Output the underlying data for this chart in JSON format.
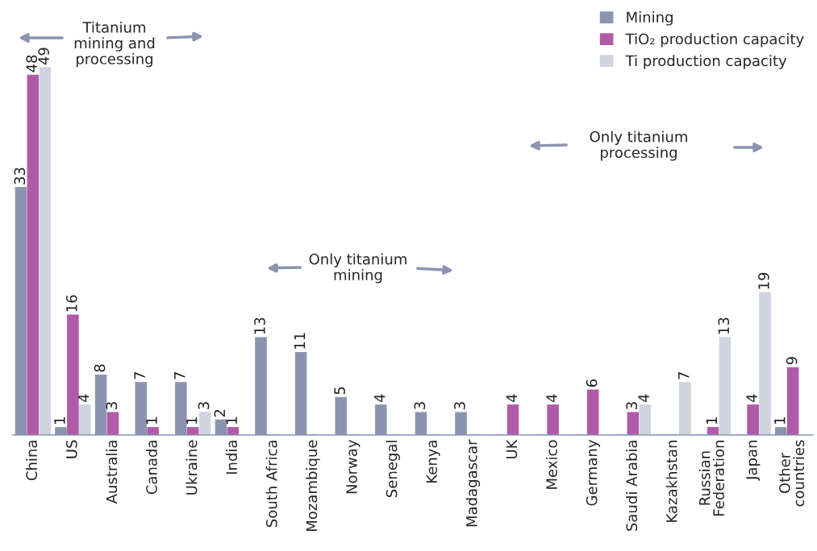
{
  "chart_data": {
    "type": "bar",
    "categories": [
      "China",
      "US",
      "Australia",
      "Canada",
      "Ukraine",
      "India",
      "South Africa",
      "Mozambique",
      "Norway",
      "Senegal",
      "Kenya",
      "Madagascar",
      "UK",
      "Mexico",
      "Germany",
      "Saudi Arabia",
      "Kazakhstan",
      "Russian\nFederation",
      "Japan",
      "Other\ncountries"
    ],
    "series": [
      {
        "name": "Mining",
        "color": "#8a94b0",
        "values": [
          33,
          1,
          8,
          7,
          7,
          2,
          13,
          11,
          5,
          4,
          3,
          3,
          0,
          0,
          0,
          0,
          0,
          0,
          0,
          1
        ],
        "value_labels": [
          "33",
          "1",
          "8",
          "7",
          "7",
          "2",
          "13",
          "11",
          "5",
          "4",
          "3",
          "3",
          null,
          null,
          null,
          null,
          null,
          null,
          null,
          "1"
        ]
      },
      {
        "name": "TiO₂ production capacity",
        "color": "#b05aa8",
        "values": [
          48,
          16,
          3,
          1,
          1,
          1,
          0,
          0,
          0,
          0,
          0,
          0,
          4,
          4,
          6,
          3,
          0,
          1,
          4,
          9
        ],
        "value_labels": [
          "48",
          "16",
          "3",
          "1",
          "1",
          "1",
          null,
          null,
          null,
          null,
          null,
          null,
          "4",
          "4",
          "6",
          "3",
          null,
          "1",
          "4",
          "9"
        ]
      },
      {
        "name": "Ti production capacity",
        "color": "#d0d3e0",
        "values": [
          49,
          4,
          0,
          0,
          3,
          0,
          0,
          0,
          0,
          0,
          0,
          0,
          0,
          0,
          0,
          4,
          7,
          13,
          19,
          0
        ],
        "value_labels": [
          "49",
          "4",
          null,
          null,
          "3",
          null,
          null,
          null,
          null,
          null,
          null,
          null,
          null,
          null,
          null,
          "4",
          "7",
          "13",
          "19",
          null
        ]
      }
    ],
    "tick_labels": "x",
    "grid": false,
    "legend": "top right",
    "annotations": [
      "Titanium\nmining and\nprocessing",
      "Only titanium\nmining",
      "Only titanium\nprocessing"
    ]
  }
}
